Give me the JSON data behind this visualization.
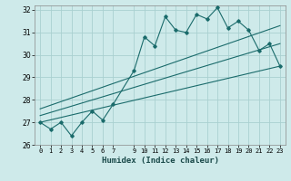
{
  "xlabel": "Humidex (Indice chaleur)",
  "ylabel": "",
  "xlim": [
    -0.5,
    23.5
  ],
  "ylim": [
    26,
    32.2
  ],
  "yticks": [
    26,
    27,
    28,
    29,
    30,
    31,
    32
  ],
  "xticks": [
    0,
    1,
    2,
    3,
    4,
    5,
    6,
    7,
    9,
    10,
    11,
    12,
    13,
    14,
    15,
    16,
    17,
    18,
    19,
    20,
    21,
    22,
    23
  ],
  "bg_color": "#ceeaea",
  "grid_color": "#aad0d0",
  "line_color": "#1a6b6b",
  "main_x": [
    0,
    1,
    2,
    3,
    4,
    5,
    6,
    7,
    9,
    10,
    11,
    12,
    13,
    14,
    15,
    16,
    17,
    18,
    19,
    20,
    21,
    22,
    23
  ],
  "main_y": [
    27.0,
    26.7,
    27.0,
    26.4,
    27.0,
    27.5,
    27.1,
    27.8,
    29.3,
    30.8,
    30.4,
    31.7,
    31.1,
    31.0,
    31.8,
    31.6,
    32.1,
    31.2,
    31.5,
    31.1,
    30.2,
    30.5,
    29.5
  ],
  "trend1_x": [
    0,
    23
  ],
  "trend1_y": [
    27.0,
    29.5
  ],
  "trend2_x": [
    0,
    23
  ],
  "trend2_y": [
    27.3,
    30.5
  ],
  "trend3_x": [
    0,
    23
  ],
  "trend3_y": [
    27.6,
    31.3
  ]
}
